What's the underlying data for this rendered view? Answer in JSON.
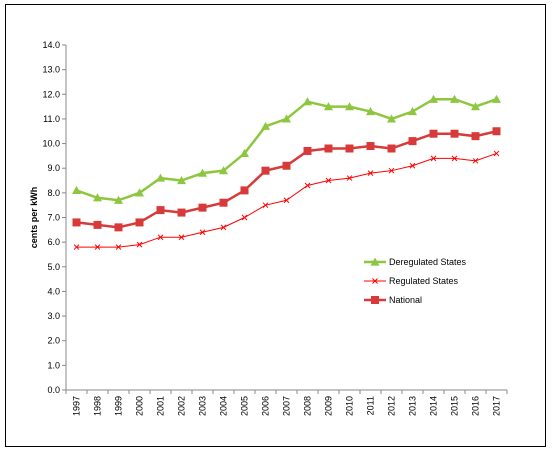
{
  "chart_data": {
    "type": "line",
    "title": "",
    "xlabel": "",
    "ylabel": "cents per kWh",
    "ylim": [
      0,
      14
    ],
    "ytick_step": 1,
    "ytick_labels": [
      "0.0",
      "1.0",
      "2.0",
      "3.0",
      "4.0",
      "5.0",
      "6.0",
      "7.0",
      "8.0",
      "9.0",
      "10.0",
      "11.0",
      "12.0",
      "13.0",
      "14.0"
    ],
    "grid": false,
    "legend_position": "lower-right",
    "categories": [
      "1997",
      "1998",
      "1999",
      "2000",
      "2001",
      "2002",
      "2003",
      "2004",
      "2005",
      "2006",
      "2007",
      "2008",
      "2009",
      "2010",
      "2011",
      "2012",
      "2013",
      "2014",
      "2015",
      "2016",
      "2017"
    ],
    "series": [
      {
        "name": "Deregulated States",
        "color": "#8DC63F",
        "marker": "triangle",
        "values": [
          8.1,
          7.8,
          7.7,
          8.0,
          8.6,
          8.5,
          8.8,
          8.9,
          9.6,
          10.7,
          11.0,
          11.7,
          11.5,
          11.5,
          11.3,
          11.0,
          11.3,
          11.8,
          11.8,
          11.5,
          11.8
        ]
      },
      {
        "name": "Regulated States",
        "color": "#FF0000",
        "marker": "x",
        "values": [
          5.8,
          5.8,
          5.8,
          5.9,
          6.2,
          6.2,
          6.4,
          6.6,
          7.0,
          7.5,
          7.7,
          8.3,
          8.5,
          8.6,
          8.8,
          8.9,
          9.1,
          9.4,
          9.4,
          9.3,
          9.6
        ]
      },
      {
        "name": "National",
        "color": "#D83A3A",
        "marker": "square",
        "values": [
          6.8,
          6.7,
          6.6,
          6.8,
          7.3,
          7.2,
          7.4,
          7.6,
          8.1,
          8.9,
          9.1,
          9.7,
          9.8,
          9.8,
          9.9,
          9.8,
          10.1,
          10.4,
          10.4,
          10.3,
          10.5
        ]
      }
    ]
  }
}
